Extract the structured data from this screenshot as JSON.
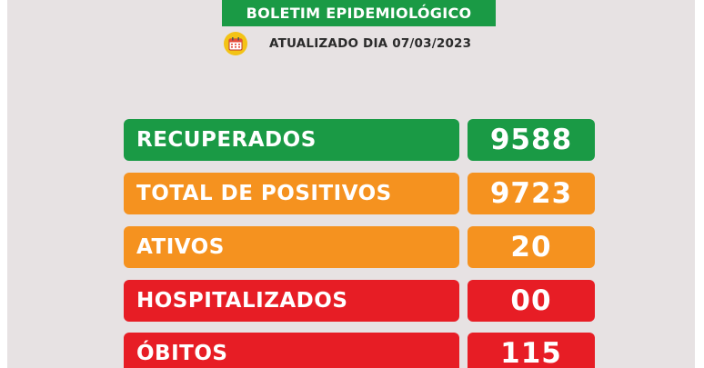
{
  "header": {
    "title": "BOLETIM EPIDEMIOLÓGICO"
  },
  "update": {
    "text": "ATUALIZADO DIA 07/03/2023",
    "icon": "calendar-icon"
  },
  "colors": {
    "green": "#1a9a45",
    "orange": "#f5921f",
    "red": "#e71d25",
    "background": "#e7e2e3",
    "icon_yellow": "#f3c316"
  },
  "stats": [
    {
      "label": "RECUPERADOS",
      "value": "9588"
    },
    {
      "label": "TOTAL DE POSITIVOS",
      "value": "9723"
    },
    {
      "label": "ATIVOS",
      "value": "20"
    },
    {
      "label": "HOSPITALIZADOS",
      "value": "00"
    },
    {
      "label": "ÓBITOS",
      "value": "115"
    }
  ]
}
